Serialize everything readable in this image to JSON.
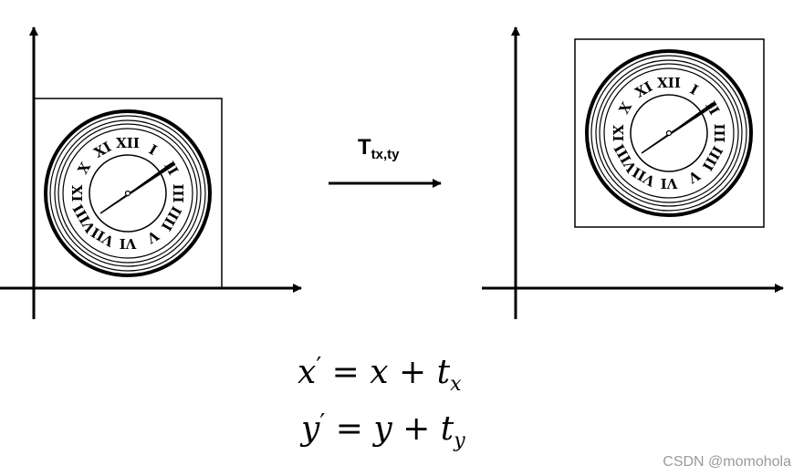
{
  "transform": {
    "symbol": "T",
    "subscript": "tx,ty"
  },
  "equations": {
    "eq1": {
      "lhs": "x",
      "rhs_var": "x",
      "t": "t",
      "t_sub": "x"
    },
    "eq2": {
      "lhs": "y",
      "rhs_var": "y",
      "t": "t",
      "t_sub": "y"
    }
  },
  "watermark": "CSDN @momohola",
  "clock": {
    "numerals": [
      "XII",
      "I",
      "II",
      "III",
      "IIII",
      "V",
      "VI",
      "VII",
      "VIII",
      "IX",
      "X",
      "XI"
    ]
  }
}
